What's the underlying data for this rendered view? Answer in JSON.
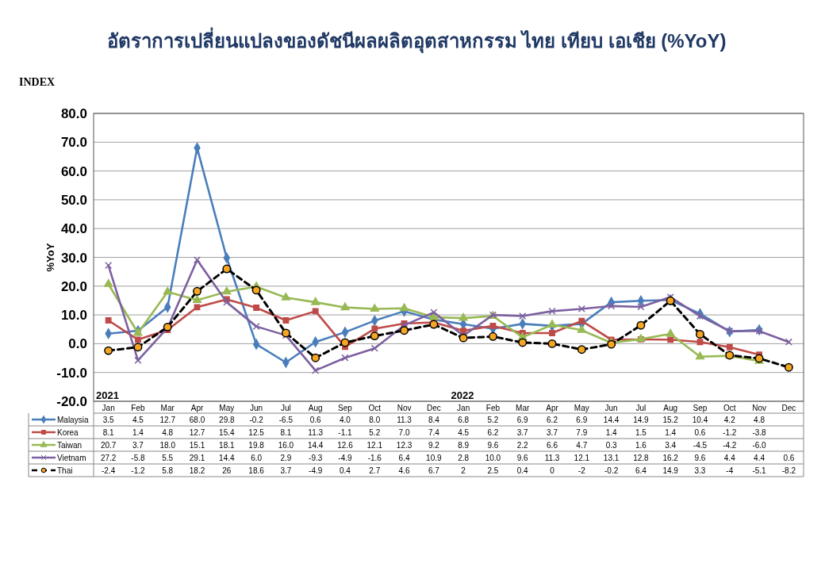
{
  "chart_data": {
    "type": "line",
    "title": "อัตราการเปลี่ยนแปลงของดัชนีผลผลิตอุตสาหกรรม ไทย เทียบ เอเชีย (%YoY)",
    "subtitle": "INDEX",
    "ylabel": "%YoY",
    "categories": [
      "Jan",
      "Feb",
      "Mar",
      "Apr",
      "May",
      "Jun",
      "Jul",
      "Aug",
      "Sep",
      "Oct",
      "Nov",
      "Dec",
      "Jan",
      "Feb",
      "Mar",
      "Apr",
      "May",
      "Jun",
      "Jul",
      "Aug",
      "Sep",
      "Oct",
      "Nov",
      "Dec"
    ],
    "annotations": [
      "2021",
      "2022"
    ],
    "ylim": [
      -20,
      80
    ],
    "yticks": [
      {
        "value": -20,
        "label": "-20.0"
      },
      {
        "value": -10,
        "label": "-10.0"
      },
      {
        "value": 0,
        "label": "0.0"
      },
      {
        "value": 10,
        "label": "10.0"
      },
      {
        "value": 20,
        "label": "20.0"
      },
      {
        "value": 30,
        "label": "30.0"
      },
      {
        "value": 40,
        "label": "40.0"
      },
      {
        "value": 50,
        "label": "50.0"
      },
      {
        "value": 60,
        "label": "60.0"
      },
      {
        "value": 70,
        "label": "70.0"
      },
      {
        "value": 80,
        "label": "80.0"
      }
    ],
    "grid": "y",
    "legend": "bottom",
    "series": [
      {
        "name": "Malaysia",
        "color": "#4a7ebb",
        "marker": "diamond",
        "line_style": "solid",
        "values": [
          3.5,
          4.5,
          12.7,
          68.0,
          29.8,
          -0.2,
          -6.5,
          0.6,
          4.0,
          8.0,
          11.3,
          8.4,
          6.8,
          5.2,
          6.9,
          6.2,
          6.9,
          14.4,
          14.9,
          15.2,
          10.4,
          4.2,
          4.8,
          null
        ],
        "value_labels": [
          "3.5",
          "4.5",
          "12.7",
          "68.0",
          "29.8",
          "-0.2",
          "-6.5",
          "0.6",
          "4.0",
          "8.0",
          "11.3",
          "8.4",
          "6.8",
          "5.2",
          "6.9",
          "6.2",
          "6.9",
          "14.4",
          "14.9",
          "15.2",
          "10.4",
          "4.2",
          "4.8",
          null
        ]
      },
      {
        "name": "Korea",
        "color": "#be4b48",
        "marker": "square",
        "line_style": "solid",
        "values": [
          8.1,
          1.4,
          4.8,
          12.7,
          15.4,
          12.5,
          8.1,
          11.3,
          -1.1,
          5.2,
          7.0,
          7.4,
          4.5,
          6.2,
          3.7,
          3.7,
          7.9,
          1.4,
          1.5,
          1.4,
          0.6,
          -1.2,
          -3.8,
          null
        ],
        "value_labels": [
          "8.1",
          "1.4",
          "4.8",
          "12.7",
          "15.4",
          "12.5",
          "8.1",
          "11.3",
          "-1.1",
          "5.2",
          "7.0",
          "7.4",
          "4.5",
          "6.2",
          "3.7",
          "3.7",
          "7.9",
          "1.4",
          "1.5",
          "1.4",
          "0.6",
          "-1.2",
          "-3.8",
          null
        ]
      },
      {
        "name": "Taiwan",
        "color": "#98b954",
        "marker": "triangle",
        "line_style": "solid",
        "values": [
          20.7,
          3.7,
          18.0,
          15.1,
          18.1,
          19.8,
          16.0,
          14.4,
          12.6,
          12.1,
          12.3,
          9.2,
          8.9,
          9.6,
          2.2,
          6.6,
          4.7,
          0.3,
          1.6,
          3.4,
          -4.5,
          -4.2,
          -6.0,
          null
        ],
        "value_labels": [
          "20.7",
          "3.7",
          "18.0",
          "15.1",
          "18.1",
          "19.8",
          "16.0",
          "14.4",
          "12.6",
          "12.1",
          "12.3",
          "9.2",
          "8.9",
          "9.6",
          "2.2",
          "6.6",
          "4.7",
          "0.3",
          "1.6",
          "3.4",
          "-4.5",
          "-4.2",
          "-6.0",
          null
        ]
      },
      {
        "name": "Vietnam",
        "color": "#7d60a0",
        "marker": "cross",
        "line_style": "solid",
        "values": [
          27.2,
          -5.8,
          5.5,
          29.1,
          14.4,
          6.0,
          2.9,
          -9.3,
          -4.9,
          -1.6,
          6.4,
          10.9,
          2.8,
          10.0,
          9.6,
          11.3,
          12.1,
          13.1,
          12.8,
          16.2,
          9.6,
          4.4,
          4.4,
          0.6
        ],
        "value_labels": [
          "27.2",
          "-5.8",
          "5.5",
          "29.1",
          "14.4",
          "6.0",
          "2.9",
          "-9.3",
          "-4.9",
          "-1.6",
          "6.4",
          "10.9",
          "2.8",
          "10.0",
          "9.6",
          "11.3",
          "12.1",
          "13.1",
          "12.8",
          "16.2",
          "9.6",
          "4.4",
          "4.4",
          "0.6"
        ]
      },
      {
        "name": "Thai",
        "color": "#000000",
        "marker": "circle",
        "line_style": "dashed",
        "values": [
          -2.4,
          -1.2,
          5.8,
          18.2,
          26,
          18.6,
          3.7,
          -4.9,
          0.4,
          2.7,
          4.6,
          6.7,
          2,
          2.5,
          0.4,
          0,
          -2,
          -0.2,
          6.4,
          14.9,
          3.3,
          -4,
          -5.1,
          -8.2
        ],
        "value_labels": [
          "-2.4",
          "-1.2",
          "5.8",
          "18.2",
          "26",
          "18.6",
          "3.7",
          "-4.9",
          "0.4",
          "2.7",
          "4.6",
          "6.7",
          "2",
          "2.5",
          "0.4",
          "0",
          "-2",
          "-0.2",
          "6.4",
          "14.9",
          "3.3",
          "-4",
          "-5.1",
          "-8.2"
        ]
      }
    ]
  }
}
